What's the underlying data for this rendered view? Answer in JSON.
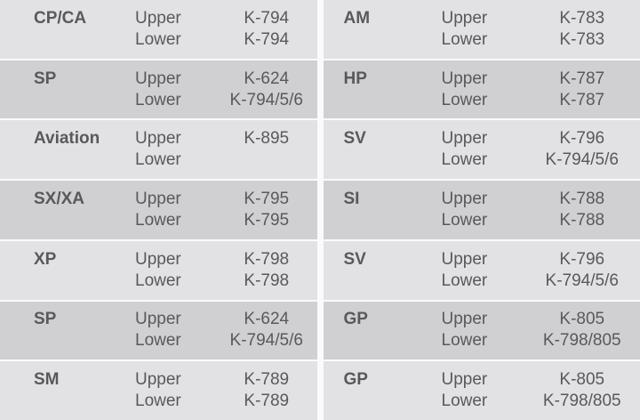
{
  "labels": {
    "upper": "Upper",
    "lower": "Lower"
  },
  "table": {
    "left": [
      {
        "model": "CP/CA",
        "upper": "K-794",
        "lower": "K-794"
      },
      {
        "model": "SP",
        "upper": "K-624",
        "lower": "K-794/5/6"
      },
      {
        "model": "Aviation",
        "upper": "K-895",
        "lower": ""
      },
      {
        "model": "SX/XA",
        "upper": "K-795",
        "lower": "K-795"
      },
      {
        "model": "XP",
        "upper": "K-798",
        "lower": "K-798"
      },
      {
        "model": "SP",
        "upper": "K-624",
        "lower": "K-794/5/6"
      },
      {
        "model": "SM",
        "upper": "K-789",
        "lower": "K-789"
      }
    ],
    "right": [
      {
        "model": "AM",
        "upper": "K-783",
        "lower": "K-783"
      },
      {
        "model": "HP",
        "upper": "K-787",
        "lower": "K-787"
      },
      {
        "model": "SV",
        "upper": "K-796",
        "lower": "K-794/5/6"
      },
      {
        "model": "SI",
        "upper": "K-788",
        "lower": "K-788"
      },
      {
        "model": "SV",
        "upper": "K-796",
        "lower": "K-794/5/6"
      },
      {
        "model": "GP",
        "upper": "K-805",
        "lower": "K-798/805"
      },
      {
        "model": "GP",
        "upper": "K-805",
        "lower": "K-798/805"
      }
    ]
  },
  "colors": {
    "row_light": "#e2e2e4",
    "row_dark": "#d0d0d2",
    "divider": "#fafafa",
    "text": "#58595c"
  }
}
